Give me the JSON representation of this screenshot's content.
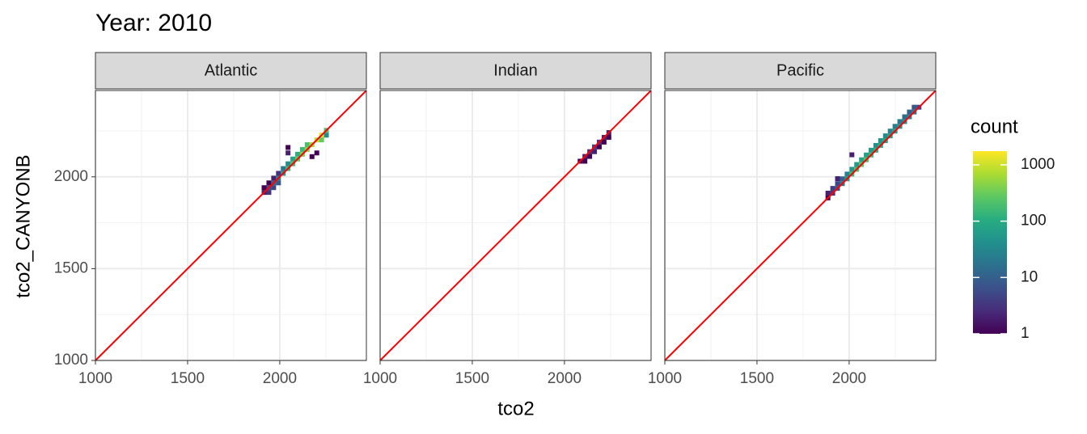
{
  "chart_data": {
    "type": "heatmap",
    "title": "Year: 2010",
    "x_label": "tco2",
    "y_label": "tco2_CANYONB",
    "xlim": [
      1000,
      2470
    ],
    "ylim": [
      1000,
      2470
    ],
    "xticks": [
      1000,
      1500,
      2000
    ],
    "yticks": [
      1000,
      1500,
      2000
    ],
    "minor_ticks": [
      1250,
      1750,
      2250
    ],
    "grid": true,
    "identity_line_color": "#ff0000",
    "legend": {
      "title": "count",
      "scale": "log",
      "lim": [
        1,
        1750
      ],
      "ticks": [
        1,
        10,
        100,
        1000
      ],
      "colors": [
        "#440154",
        "#472c7a",
        "#3b518b",
        "#2c718e",
        "#21908d",
        "#27ad81",
        "#5cc863",
        "#aadc32",
        "#fde725"
      ]
    },
    "panels": [
      {
        "name": "Atlantic",
        "x": [
          1915,
          1915,
          1941,
          1941,
          1941,
          1967,
          1967,
          1967,
          1993,
          1993,
          1993,
          2019,
          2019,
          2045,
          2045,
          2045,
          2045,
          2071,
          2071,
          2097,
          2097,
          2123,
          2123,
          2149,
          2149,
          2175,
          2175,
          2201,
          2201,
          2227,
          2227,
          2253,
          2253
        ],
        "y": [
          1915,
          1941,
          1915,
          1941,
          1967,
          1941,
          1967,
          1993,
          1967,
          1993,
          2019,
          2019,
          2045,
          2045,
          2071,
          2130,
          2160,
          2071,
          2097,
          2097,
          2123,
          2123,
          2149,
          2149,
          2175,
          2175,
          2110,
          2201,
          2130,
          2227,
          2201,
          2253,
          2227
        ],
        "values": [
          2,
          1,
          3,
          6,
          1,
          5,
          12,
          2,
          8,
          25,
          3,
          60,
          20,
          150,
          40,
          2,
          1,
          200,
          80,
          300,
          120,
          400,
          150,
          500,
          200,
          700,
          1,
          900,
          1,
          1200,
          300,
          200,
          40
        ]
      },
      {
        "name": "Indian",
        "x": [
          2085,
          2111,
          2111,
          2137,
          2137,
          2163,
          2163,
          2189,
          2189,
          2215,
          2215,
          2241,
          2241
        ],
        "y": [
          2085,
          2111,
          2085,
          2137,
          2111,
          2163,
          2137,
          2189,
          2163,
          2215,
          2189,
          2241,
          2215
        ],
        "values": [
          1,
          2,
          1,
          3,
          1,
          4,
          2,
          3,
          1,
          2,
          1,
          2,
          1
        ]
      },
      {
        "name": "Pacific",
        "x": [
          1885,
          1885,
          1911,
          1911,
          1937,
          1937,
          1937,
          1963,
          1963,
          1989,
          1989,
          2015,
          2015,
          2015,
          2041,
          2041,
          2067,
          2067,
          2093,
          2093,
          2119,
          2119,
          2145,
          2145,
          2171,
          2171,
          2197,
          2197,
          2223,
          2223,
          2249,
          2249,
          2275,
          2275,
          2301,
          2301,
          2327,
          2327,
          2353,
          2353,
          2379
        ],
        "y": [
          1885,
          1911,
          1911,
          1937,
          1937,
          1963,
          1990,
          1963,
          1989,
          1989,
          2015,
          2015,
          2041,
          2120,
          2041,
          2067,
          2067,
          2093,
          2093,
          2119,
          2119,
          2145,
          2145,
          2171,
          2171,
          2197,
          2197,
          2223,
          2223,
          2249,
          2249,
          2275,
          2275,
          2301,
          2301,
          2327,
          2327,
          2353,
          2353,
          2379,
          2379
        ],
        "values": [
          1,
          2,
          3,
          4,
          8,
          5,
          2,
          20,
          10,
          60,
          30,
          150,
          50,
          2,
          200,
          60,
          250,
          80,
          200,
          70,
          150,
          60,
          120,
          40,
          100,
          50,
          80,
          40,
          70,
          30,
          60,
          25,
          50,
          20,
          40,
          15,
          30,
          10,
          20,
          8,
          5
        ]
      }
    ]
  }
}
